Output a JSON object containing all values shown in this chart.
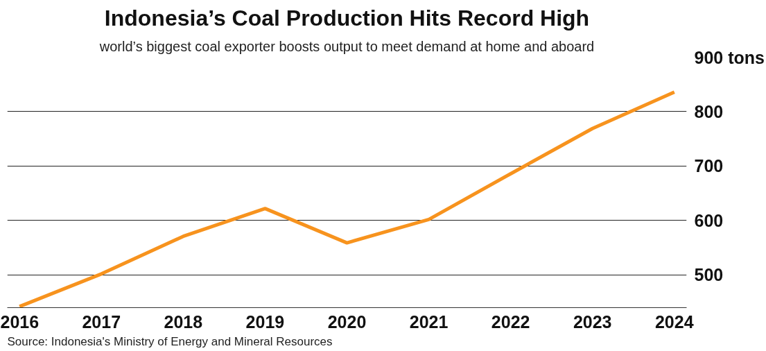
{
  "chart_data": {
    "type": "line",
    "title": "Indonesia’s Coal Production Hits Record High",
    "subtitle": "world’s biggest coal exporter boosts output to meet demand at home and aboard",
    "categories": [
      "2016",
      "2017",
      "2018",
      "2019",
      "2020",
      "2021",
      "2022",
      "2023",
      "2024"
    ],
    "series": [
      {
        "color": "#f7931e",
        "values": [
          442,
          502,
          571,
          622,
          559,
          602,
          686,
          769,
          836
        ]
      }
    ],
    "ylim": [
      440,
      900
    ],
    "yticks": [
      500,
      600,
      700,
      800,
      {
        "value": 900,
        "label": "900 tons"
      }
    ],
    "grid": "y",
    "marker": "none",
    "line_style": "solid",
    "annotations": [
      "Source:  Indonesia's Ministry of Energy and Mineral Resources"
    ]
  }
}
